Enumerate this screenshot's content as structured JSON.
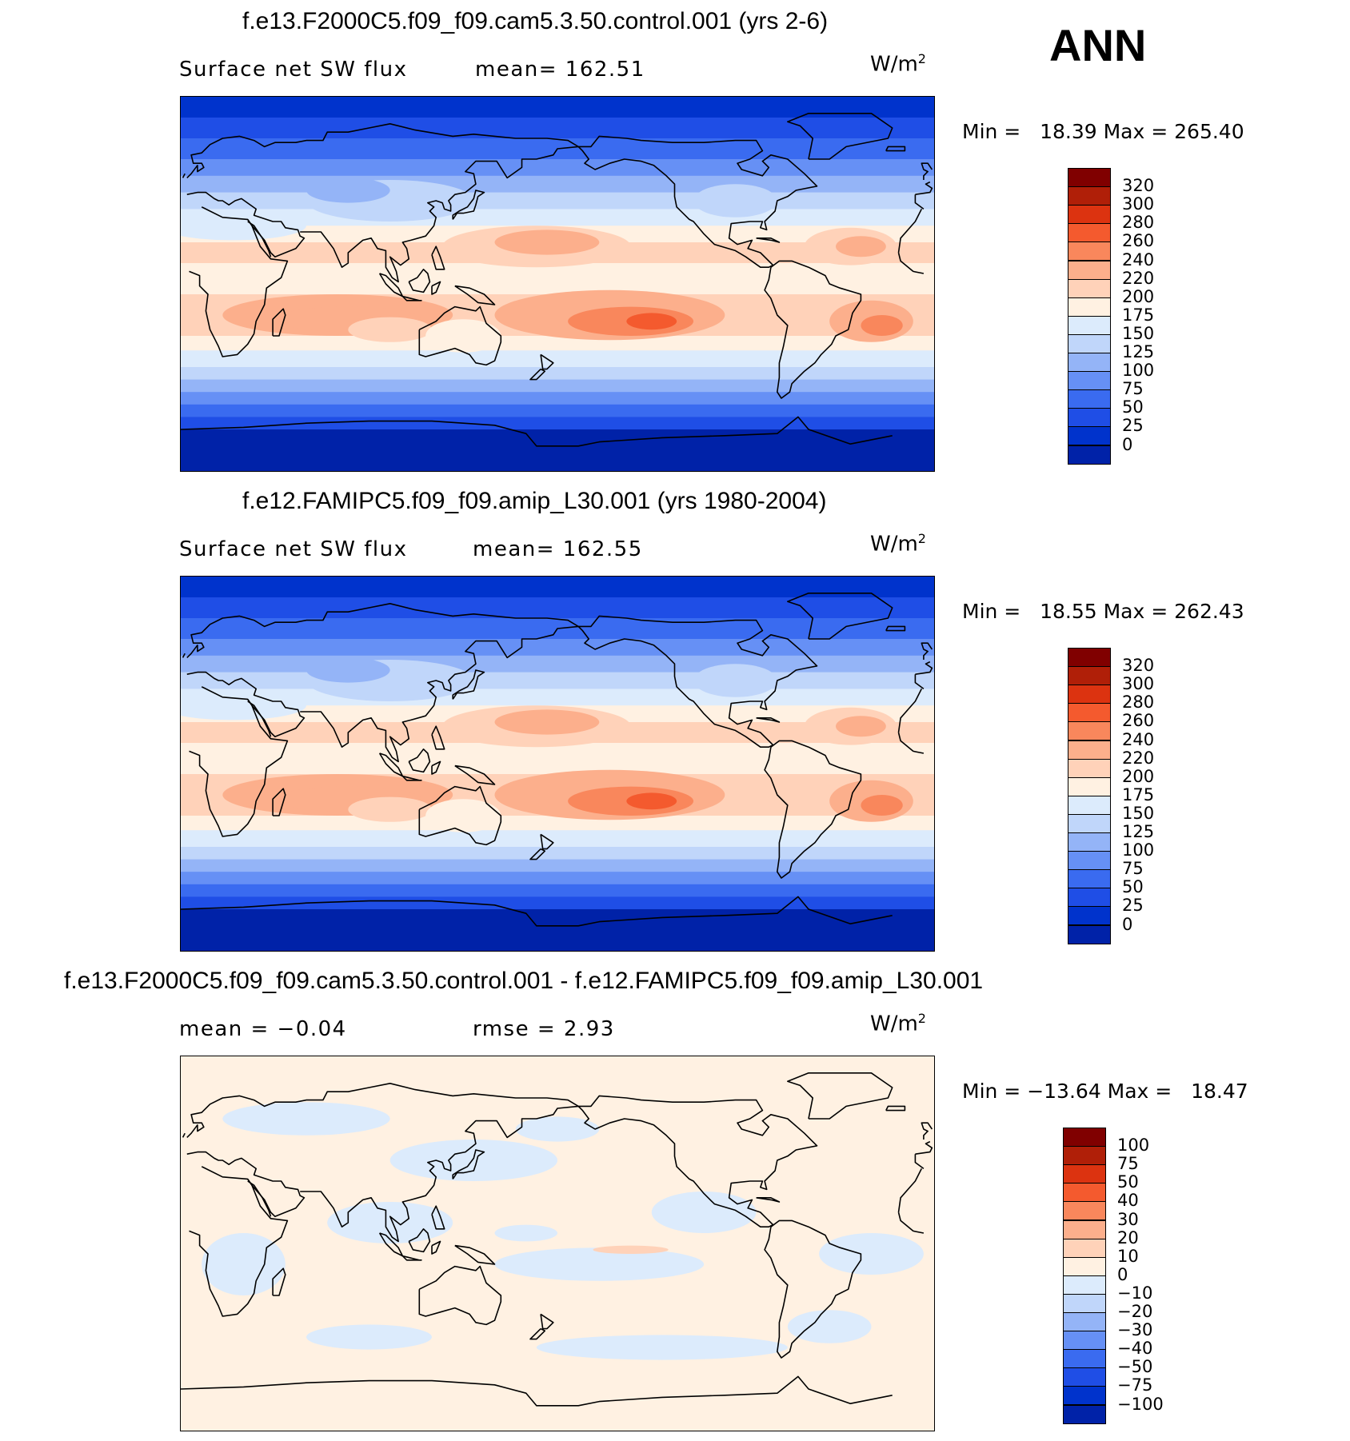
{
  "season": "ANN",
  "unit_text": "W/m",
  "unit_exp": "2",
  "panels": [
    {
      "title": "f.e13.F2000C5.f09_f09.cam5.3.50.control.001 (yrs 2-6)",
      "variable": "Surface net SW flux",
      "stat1": "mean= 162.51",
      "stat2": "",
      "minmax": "Min =   18.39 Max = 265.40",
      "colorbar": [
        "0",
        "25",
        "50",
        "75",
        "100",
        "125",
        "150",
        "175",
        "200",
        "220",
        "240",
        "260",
        "280",
        "300",
        "320"
      ],
      "min": 18.39,
      "max": 265.4,
      "mean": 162.51
    },
    {
      "title": "f.e12.FAMIPC5.f09_f09.amip_L30.001 (yrs 1980-2004)",
      "variable": "Surface net SW flux",
      "stat1": "mean= 162.55",
      "stat2": "",
      "minmax": "Min =   18.55 Max = 262.43",
      "colorbar": [
        "0",
        "25",
        "50",
        "75",
        "100",
        "125",
        "150",
        "175",
        "200",
        "220",
        "240",
        "260",
        "280",
        "300",
        "320"
      ],
      "min": 18.55,
      "max": 262.43,
      "mean": 162.55
    },
    {
      "title": "f.e13.F2000C5.f09_f09.cam5.3.50.control.001 - f.e12.FAMIPC5.f09_f09.amip_L30.001",
      "variable": "mean =   −0.04",
      "stat1": "rmse =    2.93",
      "stat2": "",
      "minmax": "Min = −13.64 Max =   18.47",
      "colorbar": [
        "−100",
        "−75",
        "−50",
        "−40",
        "−30",
        "−20",
        "−10",
        "0",
        "10",
        "20",
        "30",
        "40",
        "50",
        "75",
        "100"
      ],
      "min": -13.64,
      "max": 18.47,
      "mean": -0.04,
      "rmse": 2.93
    }
  ],
  "colors": {
    "scale": [
      "#000a8c",
      "#0022a8",
      "#0033cc",
      "#1f4ee6",
      "#3a6bf0",
      "#6690f5",
      "#94b4f7",
      "#c0d6fa",
      "#dcebfc",
      "#fff1e2",
      "#ffd2b9",
      "#fcaf8c",
      "#f9875c",
      "#f45a2e",
      "#dc3310",
      "#b01f08",
      "#800000"
    ],
    "coast": "#000000"
  }
}
